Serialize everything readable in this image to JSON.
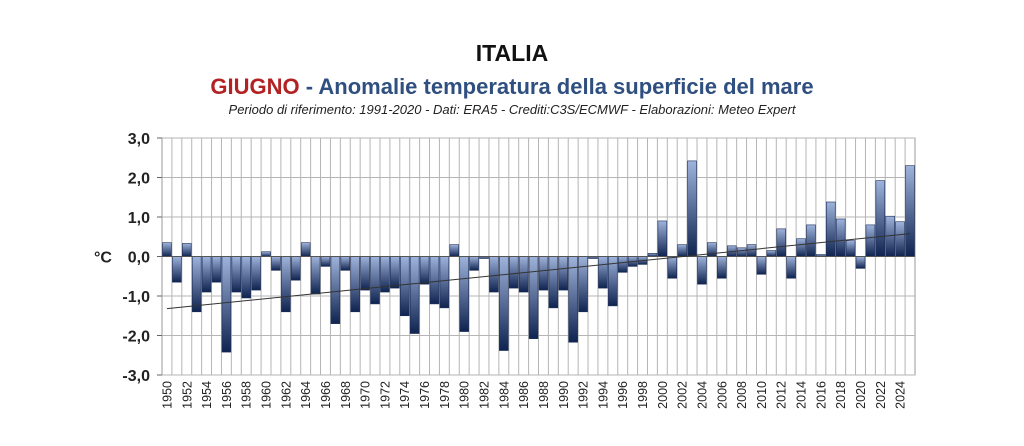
{
  "titles": {
    "main": "ITALIA",
    "month": "GIUGNO",
    "subtitle": " - Anomalie temperatura della superficie del mare",
    "note": "Periodo di riferimento: 1991-2020 - Dati: ERA5 - Crediti:C3S/ECMWF - Elaborazioni: Meteo Expert"
  },
  "colors": {
    "bar_top": "#9fb4dc",
    "bar_bottom": "#0f2350",
    "month": "#b22222",
    "subtitle": "#2f4f80",
    "trend": "#333333"
  },
  "chart_data": {
    "type": "bar",
    "title": "ITALIA",
    "ylabel": "°C",
    "ylim": [
      -3,
      3
    ],
    "yticks": [
      "-3,0",
      "-2,0",
      "-1,0",
      "0,0",
      "1,0",
      "2,0",
      "3,0"
    ],
    "grid": true,
    "x_tick_labels": [
      "1950",
      "1952",
      "1954",
      "1956",
      "1958",
      "1960",
      "1962",
      "1964",
      "1966",
      "1968",
      "1970",
      "1972",
      "1974",
      "1976",
      "1978",
      "1980",
      "1982",
      "1984",
      "1986",
      "1988",
      "1990",
      "1992",
      "1994",
      "1996",
      "1998",
      "2000",
      "2002",
      "2004",
      "2006",
      "2008",
      "2010",
      "2012",
      "2014",
      "2016",
      "2018",
      "2020",
      "2022",
      "2024"
    ],
    "categories": [
      1950,
      1951,
      1952,
      1953,
      1954,
      1955,
      1956,
      1957,
      1958,
      1959,
      1960,
      1961,
      1962,
      1963,
      1964,
      1965,
      1966,
      1967,
      1968,
      1969,
      1970,
      1971,
      1972,
      1973,
      1974,
      1975,
      1976,
      1977,
      1978,
      1979,
      1980,
      1981,
      1982,
      1983,
      1984,
      1985,
      1986,
      1987,
      1988,
      1989,
      1990,
      1991,
      1992,
      1993,
      1994,
      1995,
      1996,
      1997,
      1998,
      1999,
      2000,
      2001,
      2002,
      2003,
      2004,
      2005,
      2006,
      2007,
      2008,
      2009,
      2010,
      2011,
      2012,
      2013,
      2014,
      2015,
      2016,
      2017,
      2018,
      2019,
      2020,
      2021,
      2022,
      2023,
      2024,
      2025
    ],
    "values": [
      0.35,
      -0.65,
      0.33,
      -1.4,
      -0.9,
      -0.65,
      -2.42,
      -0.9,
      -1.05,
      -0.85,
      0.12,
      -0.35,
      -1.4,
      -0.6,
      0.35,
      -0.95,
      -0.25,
      -1.7,
      -0.35,
      -1.4,
      -0.85,
      -1.2,
      -0.9,
      -0.8,
      -1.5,
      -1.95,
      -0.7,
      -1.2,
      -1.3,
      0.3,
      -1.9,
      -0.35,
      -0.05,
      -0.9,
      -2.38,
      -0.8,
      -0.9,
      -2.08,
      -0.85,
      -1.3,
      -0.85,
      -2.17,
      -1.4,
      -0.05,
      -0.8,
      -1.25,
      -0.4,
      -0.25,
      -0.2,
      0.08,
      0.9,
      -0.55,
      0.3,
      2.42,
      -0.7,
      0.35,
      -0.55,
      0.27,
      0.22,
      0.3,
      -0.45,
      0.15,
      0.7,
      -0.55,
      0.45,
      0.8,
      0.05,
      1.38,
      0.95,
      0.4,
      -0.3,
      0.8,
      1.92,
      1.02,
      0.88,
      2.3
    ],
    "trend": {
      "start": -1.32,
      "end": 0.58
    }
  }
}
